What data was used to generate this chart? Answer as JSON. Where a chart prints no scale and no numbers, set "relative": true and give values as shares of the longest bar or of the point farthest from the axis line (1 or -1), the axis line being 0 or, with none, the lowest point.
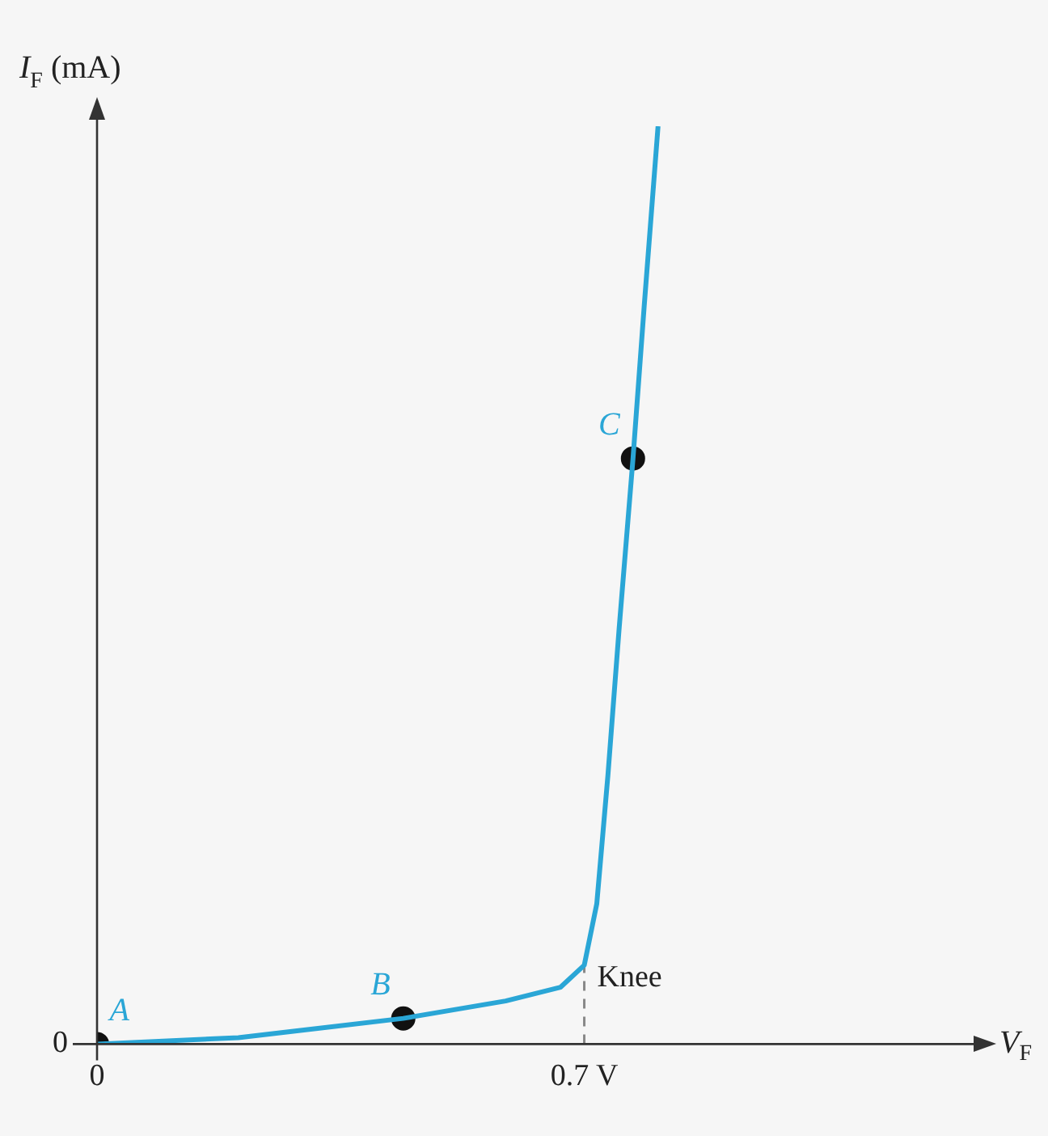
{
  "chart_data": {
    "type": "line",
    "relative": true,
    "xlabel": "V$_{F}$",
    "ylabel": "I$_{F}$ (mA)",
    "xlim": [
      0,
      1.264
    ],
    "xticks": [
      0,
      {
        "value": 0.7,
        "label": "0.7 V"
      }
    ],
    "grid": false,
    "legend": false,
    "series": [
      {
        "type": "line",
        "color": "#2aa6d6",
        "marker": "none",
        "x": [
          0,
          0.203,
          0.44,
          0.587,
          0.666,
          0.7,
          0.718,
          0.734,
          0.75,
          0.77,
          0.786,
          0.806
        ],
        "values": [
          0,
          0.007,
          0.028,
          0.047,
          0.062,
          0.086,
          0.153,
          0.293,
          0.452,
          0.638,
          0.803,
          1.0
        ]
      },
      {
        "type": "line",
        "color": "#888888",
        "marker": "none",
        "line_style": "dashed",
        "x": [
          0.7,
          0.7
        ],
        "values": [
          0,
          0.086
        ]
      },
      {
        "type": "scatter",
        "color": "#111111",
        "marker": "circle",
        "x": [
          0,
          0.44,
          0.77
        ],
        "values": [
          0,
          0.028,
          0.638
        ]
      }
    ],
    "annotations": [
      {
        "text": "A",
        "x": 0,
        "y": 0
      },
      {
        "text": "B",
        "x": 0.44,
        "y": 0.028
      },
      {
        "text": "C",
        "x": 0.77,
        "y": 0.638
      },
      {
        "text": "Knee",
        "x": 0.7,
        "y": 0.086
      },
      "0"
    ]
  }
}
